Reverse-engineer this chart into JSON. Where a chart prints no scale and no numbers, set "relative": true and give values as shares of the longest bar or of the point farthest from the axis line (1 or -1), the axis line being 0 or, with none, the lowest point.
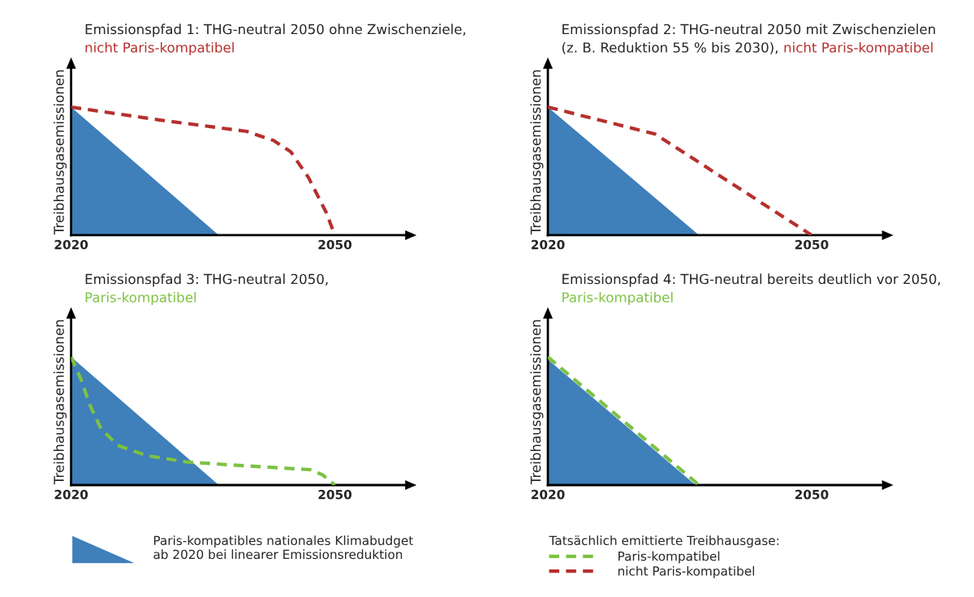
{
  "chart_data": [
    {
      "type": "area",
      "title": "Emissionspfad 1: THG-neutral 2050 ohne Zwischenziele,\n",
      "subtitle": "nicht Paris-kompatibel",
      "ylabel": "Treibhausgasemissionen",
      "relative": true,
      "xlim": [
        2020,
        2058
      ],
      "xticks": [
        2020,
        2050
      ],
      "series": [
        {
          "color": "#3f7fba",
          "x": [
            2020,
            2036.8
          ],
          "values": [
            1,
            0
          ]
        },
        {
          "type": "line",
          "line_style": "dashed",
          "color": "#b5302e",
          "x": [
            2020,
            2030,
            2040,
            2043,
            2045,
            2047,
            2049,
            2050
          ],
          "values": [
            1,
            0.9,
            0.81,
            0.74,
            0.65,
            0.45,
            0.18,
            0
          ]
        }
      ]
    },
    {
      "type": "area",
      "title": "Emissionspfad 2: THG-neutral 2050 mit Zwischenzielen\n(z. B. Reduktion 55 % bis 2030),",
      "subtitle": "nicht Paris-kompatibel",
      "ylabel": "Treibhausgasemissionen",
      "relative": true,
      "xlim": [
        2020,
        2058
      ],
      "xticks": [
        2020,
        2050
      ],
      "legend": "bottom",
      "series": [
        {
          "color": "#3f7fba",
          "x": [
            2020,
            2037.2
          ],
          "values": [
            1,
            0
          ]
        },
        {
          "name": "nicht Paris-kompatibel",
          "type": "line",
          "line_style": "dashed",
          "color": "#b5302e",
          "x": [
            2020,
            2032.2,
            2050
          ],
          "values": [
            1,
            0.79,
            0
          ]
        }
      ]
    },
    {
      "type": "area",
      "title": "Emissionspfad 3: THG-neutral 2050,\n",
      "subtitle": "Paris-kompatibel",
      "ylabel": "Treibhausgasemissionen",
      "relative": true,
      "xlim": [
        2020,
        2058
      ],
      "xticks": [
        2020,
        2050
      ],
      "legend": "bottom",
      "series": [
        {
          "name": "Paris-kompatibles nationales Klimabudget\nab 2020 bei linearer Emissionsreduktion",
          "color": "#3f7fba",
          "x": [
            2020,
            2036.8
          ],
          "values": [
            1,
            0
          ]
        },
        {
          "type": "line",
          "line_style": "dashed",
          "color": "#7cc242",
          "x": [
            2020,
            2021.1,
            2022.1,
            2023.4,
            2025.3,
            2028.6,
            2033.2,
            2039.8,
            2047.2,
            2048.6,
            2050
          ],
          "values": [
            1,
            0.83,
            0.63,
            0.44,
            0.31,
            0.23,
            0.18,
            0.15,
            0.12,
            0.08,
            0
          ]
        }
      ]
    },
    {
      "type": "area",
      "title": "Emissionspfad 4: THG-neutral bereits deutlich vor 2050,\n",
      "subtitle": "Paris-kompatibel",
      "ylabel": "Treibhausgasemissionen",
      "relative": true,
      "xlim": [
        2020,
        2058
      ],
      "xticks": [
        2020,
        2050
      ],
      "legend": "bottom",
      "legend_title": "Tatsächlich emittierte Treibhausgase:",
      "series": [
        {
          "color": "#3f7fba",
          "x": [
            2020,
            2036.8
          ],
          "values": [
            0.98,
            0
          ]
        },
        {
          "name": "Paris-kompatibel",
          "type": "line",
          "line_style": "dashed",
          "color": "#7cc242",
          "x": [
            2020,
            2037.2
          ],
          "values": [
            1,
            0
          ]
        }
      ]
    }
  ]
}
